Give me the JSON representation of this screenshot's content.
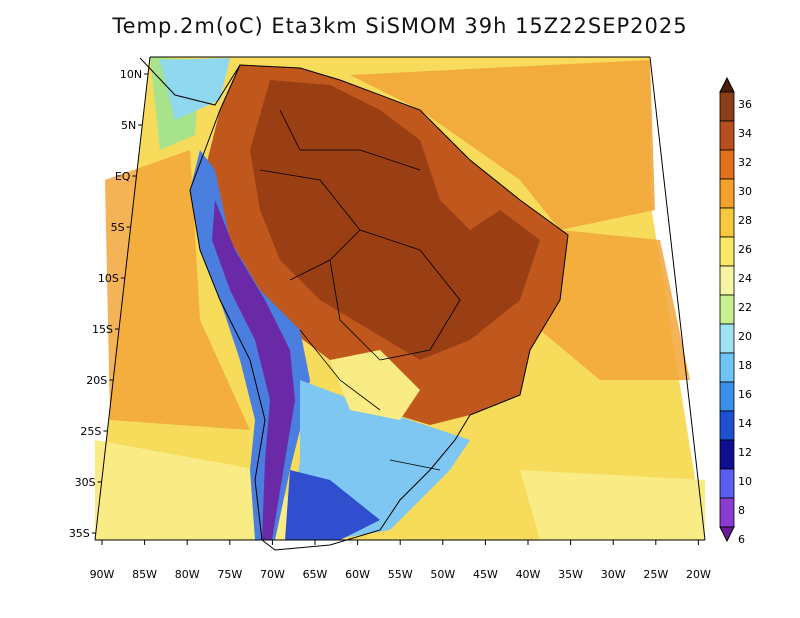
{
  "title": "Temp.2m(oC) Eta3km SiSMOM 39h 15Z22SEP2025",
  "lat_labels": [
    "10N",
    "5N",
    "EQ",
    "5S",
    "10S",
    "15S",
    "20S",
    "25S",
    "30S",
    "35S"
  ],
  "lon_labels": [
    "90W",
    "85W",
    "80W",
    "75W",
    "70W",
    "65W",
    "60W",
    "55W",
    "50W",
    "45W",
    "40W",
    "35W",
    "30W",
    "25W",
    "20W"
  ],
  "colorbar": {
    "labels": [
      "36",
      "34",
      "32",
      "30",
      "28",
      "26",
      "24",
      "22",
      "20",
      "18",
      "16",
      "14",
      "12",
      "10",
      "8",
      "6"
    ],
    "colors": [
      "#5e2a0f",
      "#8a3f18",
      "#b84e1d",
      "#e0701e",
      "#f2a12c",
      "#f7c93f",
      "#fbe966",
      "#f7f5a3",
      "#c8f092",
      "#9fe3f2",
      "#6fc3f5",
      "#3c8ee8",
      "#1f50d0",
      "#0f0f90",
      "#5a5ff0",
      "#8a3cd0",
      "#6b1a9a"
    ]
  },
  "legend_top_color": "#4a1e08",
  "legend_bottom_color": "#6b1a9a",
  "ocean_color": "#f5d555",
  "warm_ocean_color": "#f0a030"
}
